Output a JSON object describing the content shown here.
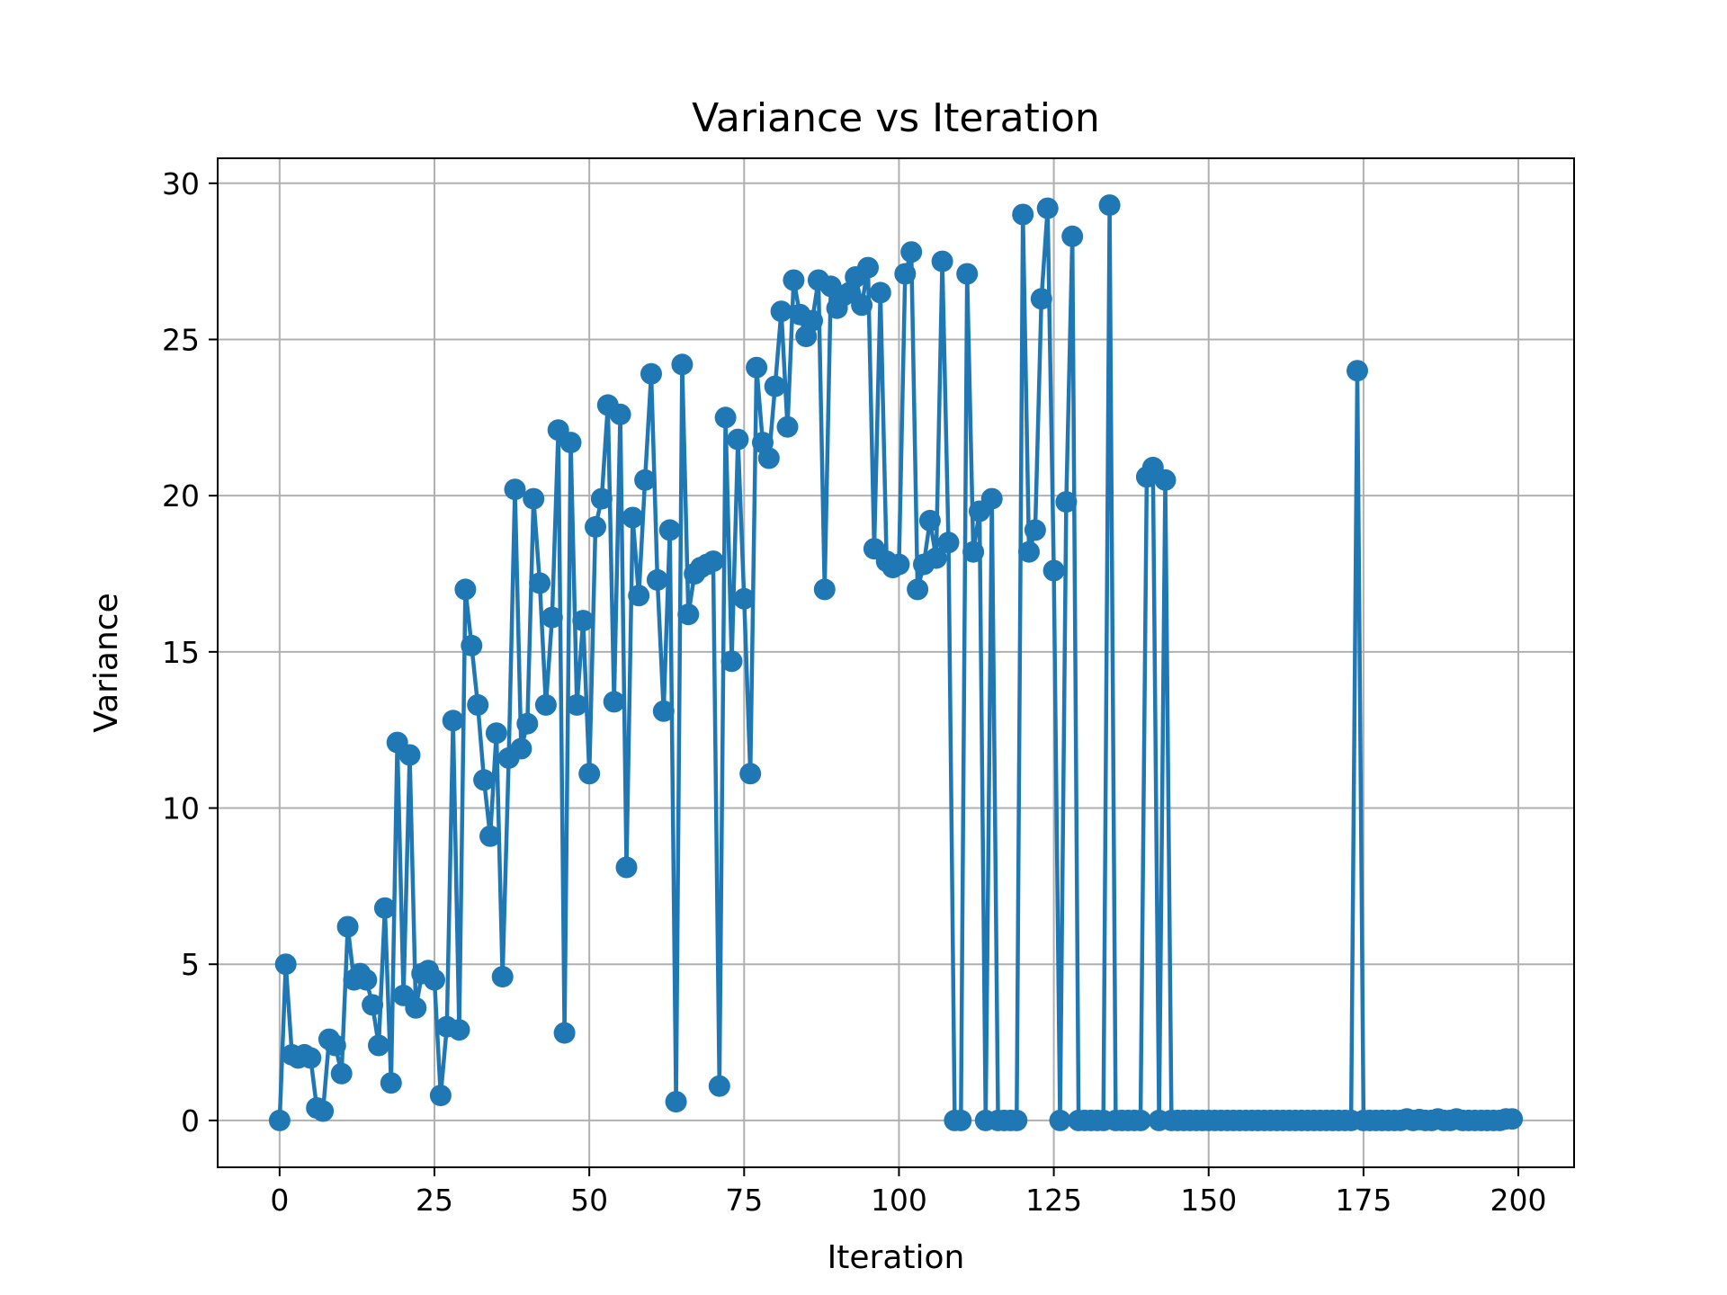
{
  "chart_data": {
    "type": "line",
    "title": "Variance vs Iteration",
    "xlabel": "Iteration",
    "ylabel": "Variance",
    "xlim": [
      -10,
      209
    ],
    "ylim": [
      -1.5,
      30.8
    ],
    "xticks": [
      0,
      25,
      50,
      75,
      100,
      125,
      150,
      175,
      200
    ],
    "yticks": [
      0,
      5,
      10,
      15,
      20,
      25,
      30
    ],
    "grid": true,
    "legend": "none",
    "series": [
      {
        "color": "#1f77b4",
        "marker": "circle",
        "x": [
          0,
          1,
          2,
          3,
          4,
          5,
          6,
          7,
          8,
          9,
          10,
          11,
          12,
          13,
          14,
          15,
          16,
          17,
          18,
          19,
          20,
          21,
          22,
          23,
          24,
          25,
          26,
          27,
          28,
          29,
          30,
          31,
          32,
          33,
          34,
          35,
          36,
          37,
          38,
          39,
          40,
          41,
          42,
          43,
          44,
          45,
          46,
          47,
          48,
          49,
          50,
          51,
          52,
          53,
          54,
          55,
          56,
          57,
          58,
          59,
          60,
          61,
          62,
          63,
          64,
          65,
          66,
          67,
          68,
          69,
          70,
          71,
          72,
          73,
          74,
          75,
          76,
          77,
          78,
          79,
          80,
          81,
          82,
          83,
          84,
          85,
          86,
          87,
          88,
          89,
          90,
          91,
          92,
          93,
          94,
          95,
          96,
          97,
          98,
          99,
          100,
          101,
          102,
          103,
          104,
          105,
          106,
          107,
          108,
          109,
          110,
          111,
          112,
          113,
          114,
          115,
          116,
          117,
          118,
          119,
          120,
          121,
          122,
          123,
          124,
          125,
          126,
          127,
          128,
          129,
          130,
          131,
          132,
          133,
          134,
          135,
          136,
          137,
          138,
          139,
          140,
          141,
          142,
          143,
          144,
          145,
          146,
          147,
          148,
          149,
          150,
          151,
          152,
          153,
          154,
          155,
          156,
          157,
          158,
          159,
          160,
          161,
          162,
          163,
          164,
          165,
          166,
          167,
          168,
          169,
          170,
          171,
          172,
          173,
          174,
          175,
          176,
          177,
          178,
          179,
          180,
          181,
          182,
          183,
          184,
          185,
          186,
          187,
          188,
          189,
          190,
          191,
          192,
          193,
          194,
          195,
          196,
          197,
          198,
          199
        ],
        "y": [
          0.0,
          5.0,
          2.1,
          2.0,
          2.1,
          2.0,
          0.4,
          0.3,
          2.6,
          2.4,
          1.5,
          6.2,
          4.5,
          4.7,
          4.5,
          3.7,
          2.4,
          6.8,
          1.2,
          12.1,
          4.0,
          11.7,
          3.6,
          4.7,
          4.8,
          4.5,
          0.8,
          3.0,
          12.8,
          2.9,
          17.0,
          15.2,
          13.3,
          10.9,
          9.1,
          12.4,
          4.6,
          11.6,
          20.2,
          11.9,
          12.7,
          19.9,
          17.2,
          13.3,
          16.1,
          22.1,
          2.8,
          21.7,
          13.3,
          16.0,
          11.1,
          19.0,
          19.9,
          22.9,
          13.4,
          22.6,
          8.1,
          19.3,
          16.8,
          20.5,
          23.9,
          17.3,
          13.1,
          18.9,
          0.6,
          24.2,
          16.2,
          17.5,
          17.7,
          17.8,
          17.9,
          1.1,
          22.5,
          14.7,
          21.8,
          16.7,
          11.1,
          24.1,
          21.7,
          21.2,
          23.5,
          25.9,
          22.2,
          26.9,
          25.8,
          25.1,
          25.6,
          26.9,
          17.0,
          26.7,
          26.0,
          26.4,
          26.5,
          27.0,
          26.1,
          27.3,
          18.3,
          26.5,
          17.9,
          17.7,
          17.8,
          27.1,
          27.8,
          17.0,
          17.8,
          19.2,
          18.0,
          27.5,
          18.5,
          0.0,
          0.0,
          27.1,
          18.2,
          19.5,
          0.0,
          19.9,
          0.0,
          0.0,
          0.0,
          0.0,
          29.0,
          18.2,
          18.9,
          26.3,
          29.2,
          17.6,
          0.0,
          19.8,
          28.3,
          0.0,
          0.0,
          0.0,
          0.0,
          0.0,
          29.3,
          0.0,
          0.0,
          0.0,
          0.0,
          0.0,
          20.6,
          20.9,
          0.0,
          20.5,
          0.0,
          0.0,
          0.0,
          0.0,
          0.0,
          0.0,
          0.0,
          0.0,
          0.0,
          0.0,
          0.0,
          0.0,
          0.0,
          0.0,
          0.0,
          0.0,
          0.0,
          0.0,
          0.0,
          0.0,
          0.0,
          0.0,
          0.0,
          0.0,
          0.0,
          0.0,
          0.0,
          0.0,
          0.0,
          0.0,
          24.0,
          0.0,
          0.0,
          0.0,
          0.0,
          0.0,
          0.0,
          0.0,
          0.05,
          0.0,
          0.03,
          0.0,
          0.0,
          0.05,
          0.0,
          0.0,
          0.05,
          0.0,
          0.0,
          0.0,
          0.0,
          0.0,
          0.0,
          0.0,
          0.05,
          0.05
        ]
      }
    ]
  }
}
